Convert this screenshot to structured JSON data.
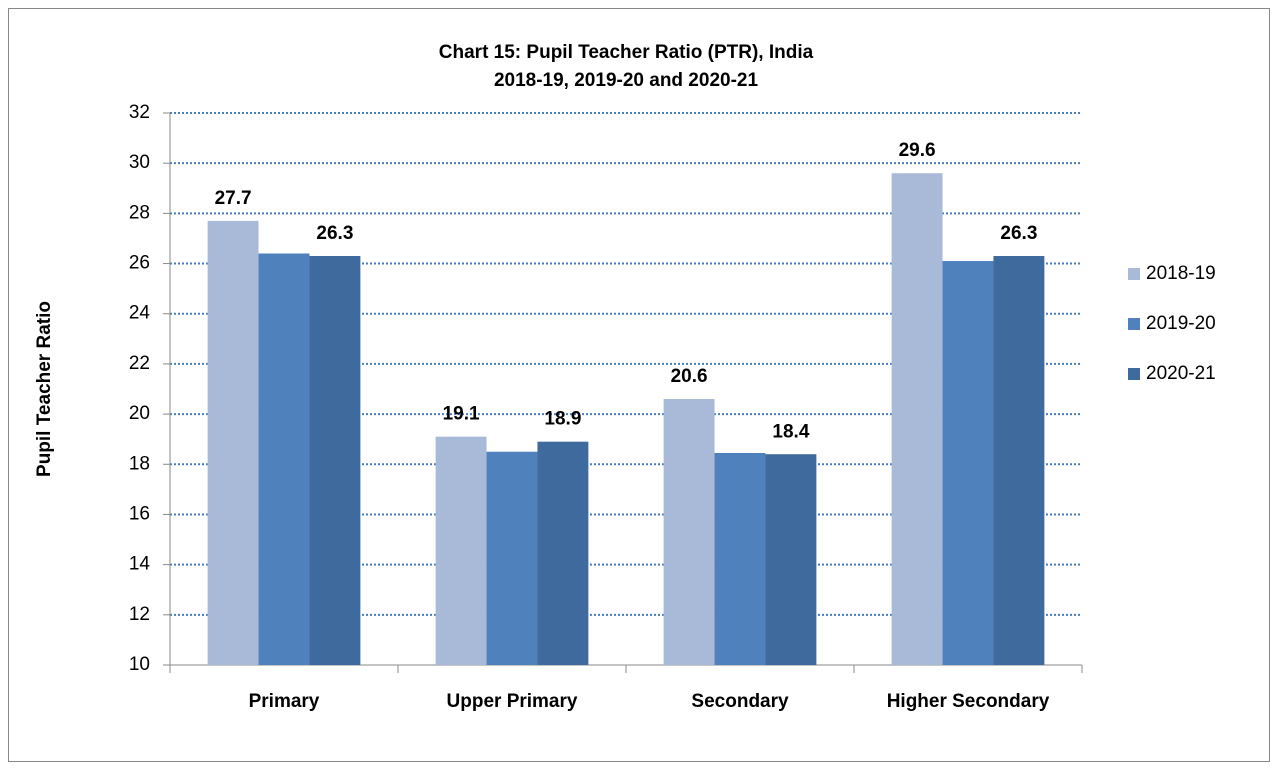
{
  "chart_data": {
    "type": "bar",
    "title": [
      "Chart 15: Pupil Teacher Ratio (PTR), India",
      "2018-19, 2019-20 and 2020-21"
    ],
    "ylabel": "Pupil Teacher Ratio",
    "categories": [
      "Primary",
      "Upper Primary",
      "Secondary",
      "Higher Secondary"
    ],
    "series": [
      {
        "name": "2018-19",
        "color": "#a9b9d8",
        "values": [
          27.7,
          19.1,
          20.6,
          29.6
        ],
        "show_labels": true
      },
      {
        "name": "2019-20",
        "color": "#4f81bd",
        "values": [
          26.4,
          18.5,
          18.45,
          26.1
        ],
        "show_labels": false
      },
      {
        "name": "2020-21",
        "color": "#3e6a9e",
        "values": [
          26.3,
          18.9,
          18.4,
          26.3
        ],
        "show_labels": true
      }
    ],
    "ylim": [
      10,
      32
    ],
    "yticks": [
      10,
      12,
      14,
      16,
      18,
      20,
      22,
      24,
      26,
      28,
      30,
      32
    ],
    "grid": true,
    "legend": "right"
  }
}
